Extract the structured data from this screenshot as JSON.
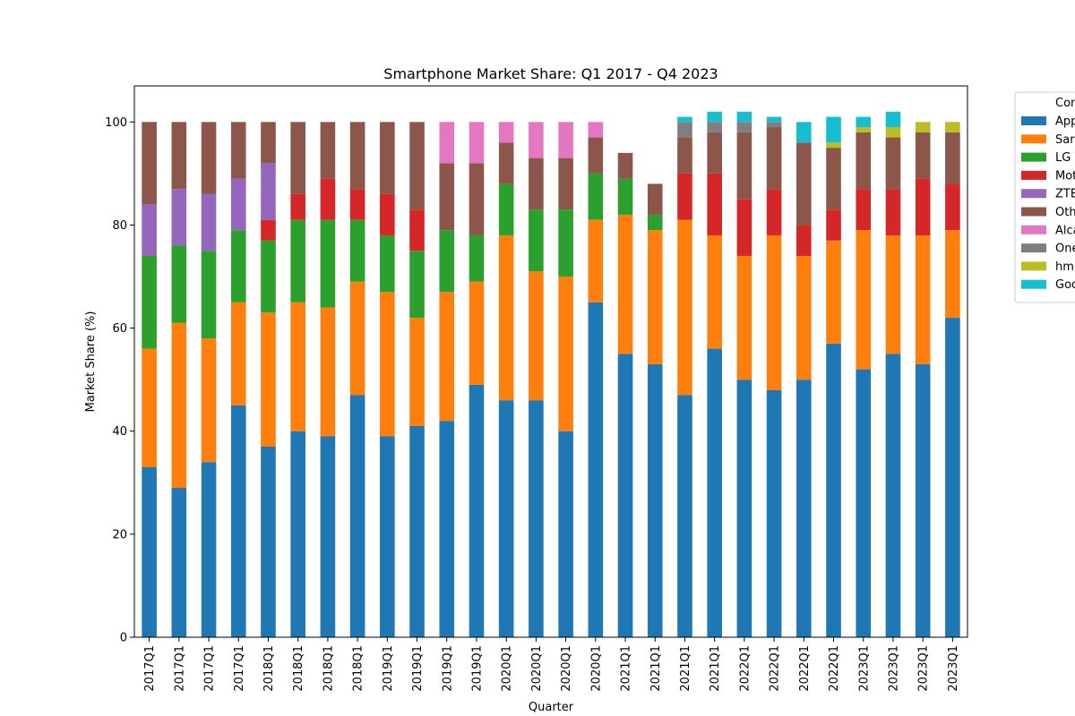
{
  "chart_data": {
    "type": "bar",
    "stacked": true,
    "title": "Smartphone Market Share: Q1 2017 - Q4 2023",
    "xlabel": "Quarter",
    "ylabel": "Market Share (%)",
    "ylim": [
      0,
      107
    ],
    "yticks": [
      0,
      20,
      40,
      60,
      80,
      100
    ],
    "grid": false,
    "legend": {
      "title": "Con",
      "placement": "right-outside-top"
    },
    "categories": [
      "2017Q1",
      "2017Q1",
      "2017Q1",
      "2017Q1",
      "2018Q1",
      "2018Q1",
      "2018Q1",
      "2018Q1",
      "2019Q1",
      "2019Q1",
      "2019Q1",
      "2019Q1",
      "2020Q1",
      "2020Q1",
      "2020Q1",
      "2020Q1",
      "2021Q1",
      "2021Q1",
      "2021Q1",
      "2021Q1",
      "2022Q1",
      "2022Q1",
      "2022Q1",
      "2022Q1",
      "2023Q1",
      "2023Q1",
      "2023Q1",
      "2023Q1"
    ],
    "series": [
      {
        "name": "App",
        "color": "#1f77b4",
        "values": [
          33,
          29,
          34,
          45,
          37,
          40,
          39,
          47,
          39,
          41,
          42,
          49,
          46,
          46,
          40,
          65,
          55,
          53,
          47,
          56,
          50,
          48,
          50,
          57,
          52,
          55,
          53,
          62
        ]
      },
      {
        "name": "Sar",
        "color": "#ff7f0e",
        "values": [
          23,
          32,
          24,
          20,
          26,
          25,
          25,
          22,
          28,
          21,
          25,
          20,
          32,
          25,
          30,
          16,
          27,
          26,
          34,
          22,
          24,
          30,
          24,
          20,
          27,
          23,
          25,
          17
        ]
      },
      {
        "name": "LG",
        "color": "#2ca02c",
        "values": [
          18,
          15,
          17,
          14,
          14,
          16,
          17,
          12,
          11,
          13,
          12,
          9,
          10,
          12,
          13,
          9,
          7,
          3,
          0,
          0,
          0,
          0,
          0,
          0,
          0,
          0,
          0,
          0
        ]
      },
      {
        "name": "Mot",
        "color": "#d62728",
        "values": [
          0,
          0,
          0,
          0,
          4,
          5,
          8,
          6,
          8,
          8,
          0,
          0,
          0,
          0,
          0,
          0,
          0,
          0,
          9,
          12,
          11,
          9,
          6,
          6,
          8,
          9,
          11,
          9
        ]
      },
      {
        "name": "ZTE",
        "color": "#9467bd",
        "values": [
          10,
          11,
          11,
          10,
          11,
          0,
          0,
          0,
          0,
          0,
          0,
          0,
          0,
          0,
          0,
          0,
          0,
          0,
          0,
          0,
          0,
          0,
          0,
          0,
          0,
          0,
          0,
          0
        ]
      },
      {
        "name": "Oth",
        "color": "#8c564b",
        "values": [
          16,
          13,
          14,
          11,
          8,
          14,
          11,
          13,
          14,
          17,
          13,
          14,
          8,
          10,
          10,
          7,
          5,
          6,
          7,
          8,
          13,
          12,
          16,
          12,
          11,
          10,
          9,
          10
        ]
      },
      {
        "name": "Alca",
        "color": "#e377c2",
        "values": [
          0,
          0,
          0,
          0,
          0,
          0,
          0,
          0,
          0,
          0,
          8,
          8,
          4,
          7,
          7,
          3,
          0,
          0,
          0,
          0,
          0,
          0,
          0,
          0,
          0,
          0,
          0,
          0
        ]
      },
      {
        "name": "One",
        "color": "#7f7f7f",
        "values": [
          0,
          0,
          0,
          0,
          0,
          0,
          0,
          0,
          0,
          0,
          0,
          0,
          0,
          0,
          0,
          0,
          0,
          0,
          3,
          2,
          2,
          1,
          0,
          0,
          0,
          0,
          0,
          0
        ]
      },
      {
        "name": "hm",
        "color": "#bcbd22",
        "values": [
          0,
          0,
          0,
          0,
          0,
          0,
          0,
          0,
          0,
          0,
          0,
          0,
          0,
          0,
          0,
          0,
          0,
          0,
          0,
          0,
          0,
          0,
          0,
          1,
          1,
          2,
          2,
          2
        ]
      },
      {
        "name": "Goo",
        "color": "#17becf",
        "values": [
          0,
          0,
          0,
          0,
          0,
          0,
          0,
          0,
          0,
          0,
          0,
          0,
          0,
          0,
          0,
          0,
          0,
          0,
          1,
          2,
          2,
          1,
          4,
          5,
          2,
          3,
          0,
          0
        ]
      }
    ]
  }
}
